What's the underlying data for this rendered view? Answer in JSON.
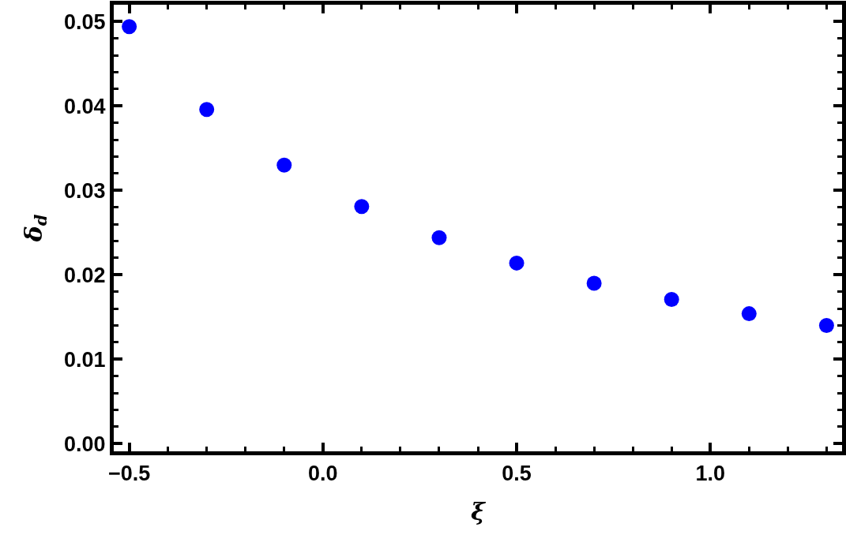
{
  "chart_data": {
    "type": "scatter",
    "xlabel": "ξ",
    "ylabel": "δ$_{d}$",
    "x": [
      -0.5,
      -0.3,
      -0.1,
      0.1,
      0.3,
      0.5,
      0.7,
      0.9,
      1.1,
      1.3
    ],
    "series": [
      {
        "color": "#0000ff",
        "values": [
          0.0494,
          0.0396,
          0.033,
          0.0281,
          0.0244,
          0.0214,
          0.019,
          0.0171,
          0.0154,
          0.014
        ]
      }
    ],
    "xlim": [
      -0.54,
      1.34
    ],
    "ylim": [
      -0.0009,
      0.052
    ],
    "xticks": [
      {
        "value": -0.5,
        "label": "−0.5"
      },
      {
        "value": 0,
        "label": "0.0"
      },
      {
        "value": 0.5,
        "label": "0.5"
      },
      {
        "value": 1,
        "label": "1.0"
      }
    ],
    "yticks": [
      {
        "value": 0,
        "label": "0.00"
      },
      {
        "value": 0.01,
        "label": "0.01"
      },
      {
        "value": 0.02,
        "label": "0.02"
      },
      {
        "value": 0.03,
        "label": "0.03"
      },
      {
        "value": 0.04,
        "label": "0.04"
      },
      {
        "value": 0.05,
        "label": "0.05"
      }
    ],
    "grid": false,
    "marker": "circle"
  }
}
